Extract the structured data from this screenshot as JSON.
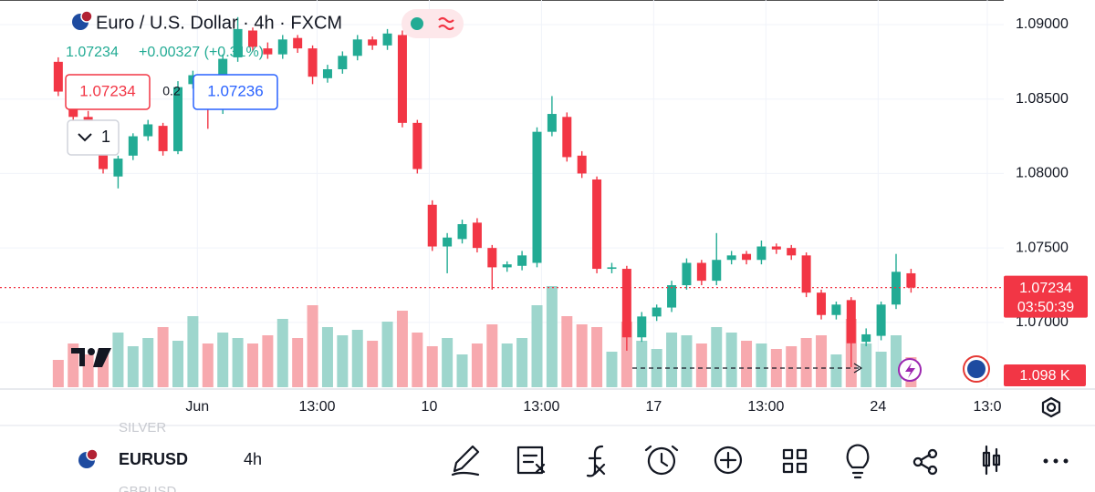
{
  "header": {
    "title": "Euro / U.S. Dollar · 4h · FXCM",
    "price": "1.07234",
    "change": "+0.00327 (+0.31%)",
    "sell": "1.07234",
    "spread": "0.2",
    "buy": "1.07236",
    "quantity": "1"
  },
  "chart_data": {
    "type": "candlestick",
    "up_color": "#22ab94",
    "down_color": "#f23645",
    "up_volume_color": "#9ed6cd",
    "down_volume_color": "#f7a9ae",
    "open": [
      1.0875,
      1.0845,
      1.0838,
      1.0832,
      1.0798,
      1.0812,
      1.0825,
      1.0832,
      1.0815,
      1.086,
      1.0855,
      1.0843,
      1.0878,
      1.0896,
      1.0884,
      1.088,
      1.0891,
      1.0884,
      1.0864,
      1.087,
      1.0879,
      1.089,
      1.0886,
      1.0893,
      1.0834,
      1.0779,
      1.0751,
      1.0756,
      1.0767,
      1.075,
      1.0737,
      1.0738,
      1.074,
      1.0828,
      1.0838,
      1.0812,
      1.0796,
      1.0736,
      1.0736,
      1.069,
      1.0704,
      1.071,
      1.0725,
      1.074,
      1.0728,
      1.0742,
      1.0746,
      1.0742,
      1.0751,
      1.075,
      1.0745,
      1.072,
      1.0705,
      1.0715,
      1.0687,
      1.0691,
      1.0712,
      1.0733
    ],
    "high": [
      1.0878,
      1.0848,
      1.0842,
      1.0834,
      1.0812,
      1.0827,
      1.0836,
      1.0834,
      1.0862,
      1.0869,
      1.0857,
      1.088,
      1.0905,
      1.0898,
      1.0888,
      1.0893,
      1.0893,
      1.0886,
      1.0873,
      1.0882,
      1.0893,
      1.0892,
      1.0897,
      1.0896,
      1.0836,
      1.0782,
      1.076,
      1.0769,
      1.077,
      1.0752,
      1.0741,
      1.0748,
      1.0831,
      1.0852,
      1.0841,
      1.0815,
      1.0798,
      1.074,
      1.0738,
      1.0707,
      1.0712,
      1.0728,
      1.0743,
      1.0742,
      1.076,
      1.0748,
      1.0748,
      1.0755,
      1.0753,
      1.0752,
      1.0747,
      1.0722,
      1.0714,
      1.0717,
      1.0696,
      1.0714,
      1.0746,
      1.0736
    ],
    "low": [
      1.0852,
      1.0835,
      1.0829,
      1.08,
      1.079,
      1.0809,
      1.0822,
      1.0812,
      1.0813,
      1.0857,
      1.083,
      1.084,
      1.0875,
      1.0882,
      1.0877,
      1.0877,
      1.0881,
      1.086,
      1.0861,
      1.0867,
      1.0876,
      1.0883,
      1.0883,
      1.0831,
      1.08,
      1.0748,
      1.0733,
      1.0753,
      1.0747,
      1.0722,
      1.0734,
      1.0735,
      1.0737,
      1.0825,
      1.0808,
      1.0797,
      1.0733,
      1.0733,
      1.0681,
      1.0687,
      1.0701,
      1.0707,
      1.0722,
      1.0725,
      1.0725,
      1.0739,
      1.0739,
      1.0739,
      1.0746,
      1.0742,
      1.0717,
      1.0702,
      1.0702,
      1.067,
      1.0684,
      1.0688,
      1.0709,
      1.072
    ],
    "close": [
      1.0855,
      1.0838,
      1.0832,
      1.0803,
      1.081,
      1.0825,
      1.0833,
      1.0815,
      1.0858,
      1.0866,
      1.0843,
      1.0877,
      1.0897,
      1.0885,
      1.088,
      1.089,
      1.0884,
      1.0865,
      1.087,
      1.0879,
      1.089,
      1.0886,
      1.0894,
      1.0834,
      1.0803,
      1.0751,
      1.0757,
      1.0766,
      1.075,
      1.0737,
      1.0739,
      1.0745,
      1.0828,
      1.084,
      1.0811,
      1.08,
      1.0736,
      1.0737,
      1.069,
      1.0704,
      1.071,
      1.0725,
      1.074,
      1.0728,
      1.0742,
      1.0745,
      1.0742,
      1.0751,
      1.0749,
      1.0745,
      1.072,
      1.0705,
      1.0712,
      1.0686,
      1.0692,
      1.0712,
      1.0734,
      1.07234
    ],
    "volume": [
      1.0,
      1.6,
      1.2,
      1.4,
      2.0,
      1.5,
      1.8,
      2.2,
      1.7,
      2.6,
      1.6,
      2.0,
      1.8,
      1.6,
      1.9,
      2.5,
      1.8,
      3.0,
      2.2,
      1.9,
      2.1,
      1.7,
      2.4,
      2.8,
      2.0,
      1.5,
      1.8,
      1.2,
      1.6,
      2.3,
      1.6,
      1.8,
      3.0,
      3.7,
      2.6,
      2.3,
      2.2,
      1.3,
      2.4,
      1.7,
      1.4,
      2.0,
      1.9,
      1.6,
      2.2,
      2.0,
      1.7,
      1.6,
      1.4,
      1.5,
      1.8,
      1.9,
      1.2,
      2.5,
      1.6,
      1.3,
      1.9,
      1.098
    ],
    "ylim": [
      1.06565,
      1.09165
    ],
    "yticks": [
      {
        "value": 1.07,
        "label": "1.07000"
      },
      {
        "value": 1.075,
        "label": "1.07500"
      },
      {
        "value": 1.08,
        "label": "1.08000"
      },
      {
        "value": 1.085,
        "label": "1.08500"
      },
      {
        "value": 1.09,
        "label": "1.09000"
      }
    ],
    "volume_ylim": [
      0,
      4
    ],
    "xlim": [
      -0.6,
      64.6
    ],
    "xticks": [
      {
        "value": 9.3,
        "label": "Jun"
      },
      {
        "value": 17.3,
        "label": "13:00"
      },
      {
        "value": 24.8,
        "label": "10"
      },
      {
        "value": 32.3,
        "label": "13:00"
      },
      {
        "value": 39.8,
        "label": "17"
      },
      {
        "value": 47.3,
        "label": "13:00"
      },
      {
        "value": 54.8,
        "label": "24"
      },
      {
        "value": 62.1,
        "label": "13:0"
      }
    ],
    "grid": true,
    "last_price": 1.07234,
    "countdown": "03:50:39",
    "volume_last_label": "1.098 K"
  },
  "toolbar": {
    "symbol": "EURUSD",
    "interval": "4h",
    "list_above": "SILVER",
    "list_below": "GBPUSD"
  }
}
